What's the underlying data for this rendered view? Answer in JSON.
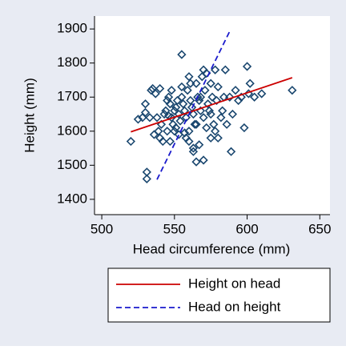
{
  "chart_data": {
    "type": "scatter",
    "x_label": "Head circumference (mm)",
    "y_label": "Height (mm)",
    "xlim": [
      495,
      657
    ],
    "ylim": [
      1355,
      1938
    ],
    "xticks": [
      500,
      550,
      600,
      650
    ],
    "yticks": [
      1400,
      1500,
      1600,
      1700,
      1800,
      1900
    ],
    "series": [
      {
        "type": "scatter",
        "color": "#1a476f",
        "x": [
          520,
          525,
          528,
          530,
          530,
          531,
          531,
          533,
          534,
          535,
          536,
          537,
          538,
          539,
          540,
          541,
          542,
          543,
          544,
          545,
          546,
          547,
          548,
          548,
          549,
          550,
          550,
          551,
          552,
          553,
          554,
          555,
          555,
          556,
          557,
          558,
          558,
          559,
          560,
          560,
          561,
          562,
          563,
          564,
          565,
          565,
          566,
          567,
          568,
          569,
          570,
          570,
          571,
          572,
          573,
          574,
          575,
          576,
          577,
          578,
          579,
          580,
          582,
          583,
          584,
          585,
          586,
          588,
          589,
          590,
          592,
          594,
          596,
          598,
          600,
          601,
          602,
          605,
          610,
          631,
          560,
          565,
          563,
          563,
          570,
          575,
          567,
          553,
          540,
          557,
          545,
          551,
          546,
          575,
          572,
          568,
          555,
          547,
          561,
          578,
          580
        ],
        "y": [
          1570,
          1635,
          1640,
          1680,
          1655,
          1460,
          1480,
          1640,
          1720,
          1725,
          1590,
          1710,
          1640,
          1600,
          1725,
          1620,
          1570,
          1650,
          1660,
          1690,
          1700,
          1680,
          1640,
          1720,
          1620,
          1660,
          1600,
          1670,
          1690,
          1650,
          1630,
          1825,
          1700,
          1680,
          1660,
          1640,
          1580,
          1720,
          1760,
          1600,
          1690,
          1670,
          1650,
          1620,
          1740,
          1510,
          1700,
          1690,
          1660,
          1760,
          1780,
          1640,
          1720,
          1610,
          1680,
          1660,
          1650,
          1700,
          1620,
          1780,
          1690,
          1730,
          1640,
          1660,
          1700,
          1780,
          1620,
          1700,
          1540,
          1650,
          1720,
          1690,
          1700,
          1610,
          1790,
          1710,
          1740,
          1700,
          1710,
          1720,
          1570,
          1620,
          1550,
          1540,
          1515,
          1580,
          1560,
          1590,
          1580,
          1595,
          1600,
          1610,
          1645,
          1740,
          1770,
          1700,
          1730,
          1570,
          1740,
          1600,
          1580
        ]
      },
      {
        "type": "line",
        "name": "Height on head",
        "color": "#cc0000",
        "dash": false,
        "x": [
          520,
          631
        ],
        "y": [
          1598,
          1757
        ]
      },
      {
        "type": "line",
        "name": "Head on height",
        "color": "#1a1acc",
        "dash": true,
        "x": [
          538,
          588
        ],
        "y": [
          1458,
          1893
        ]
      }
    ]
  }
}
